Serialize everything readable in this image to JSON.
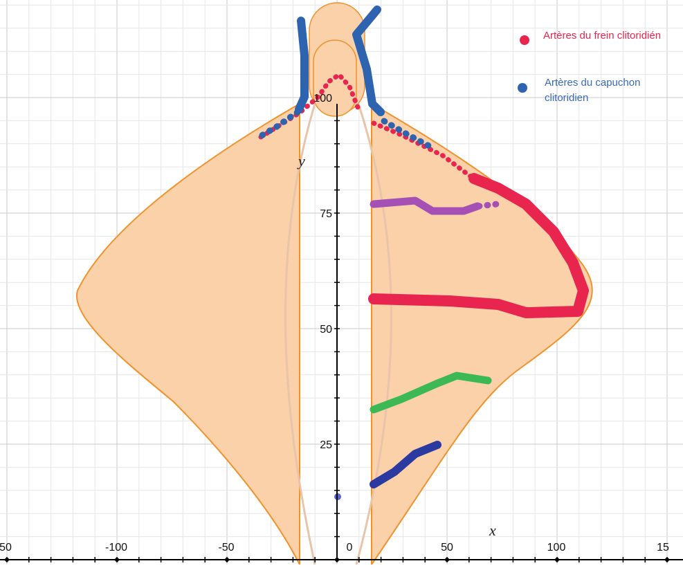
{
  "axes": {
    "x_label": "x",
    "y_label": "y",
    "x_ticks": [
      "50",
      "-100",
      "-50",
      "0",
      "50",
      "100",
      "15"
    ],
    "y_ticks": [
      "25",
      "50",
      "75",
      "100"
    ]
  },
  "legend": [
    {
      "lines": [
        "Artères du frein clitoridién"
      ]
    },
    {
      "lines": [
        "Artères du capuchon",
        "clitoridien"
      ]
    }
  ]
}
